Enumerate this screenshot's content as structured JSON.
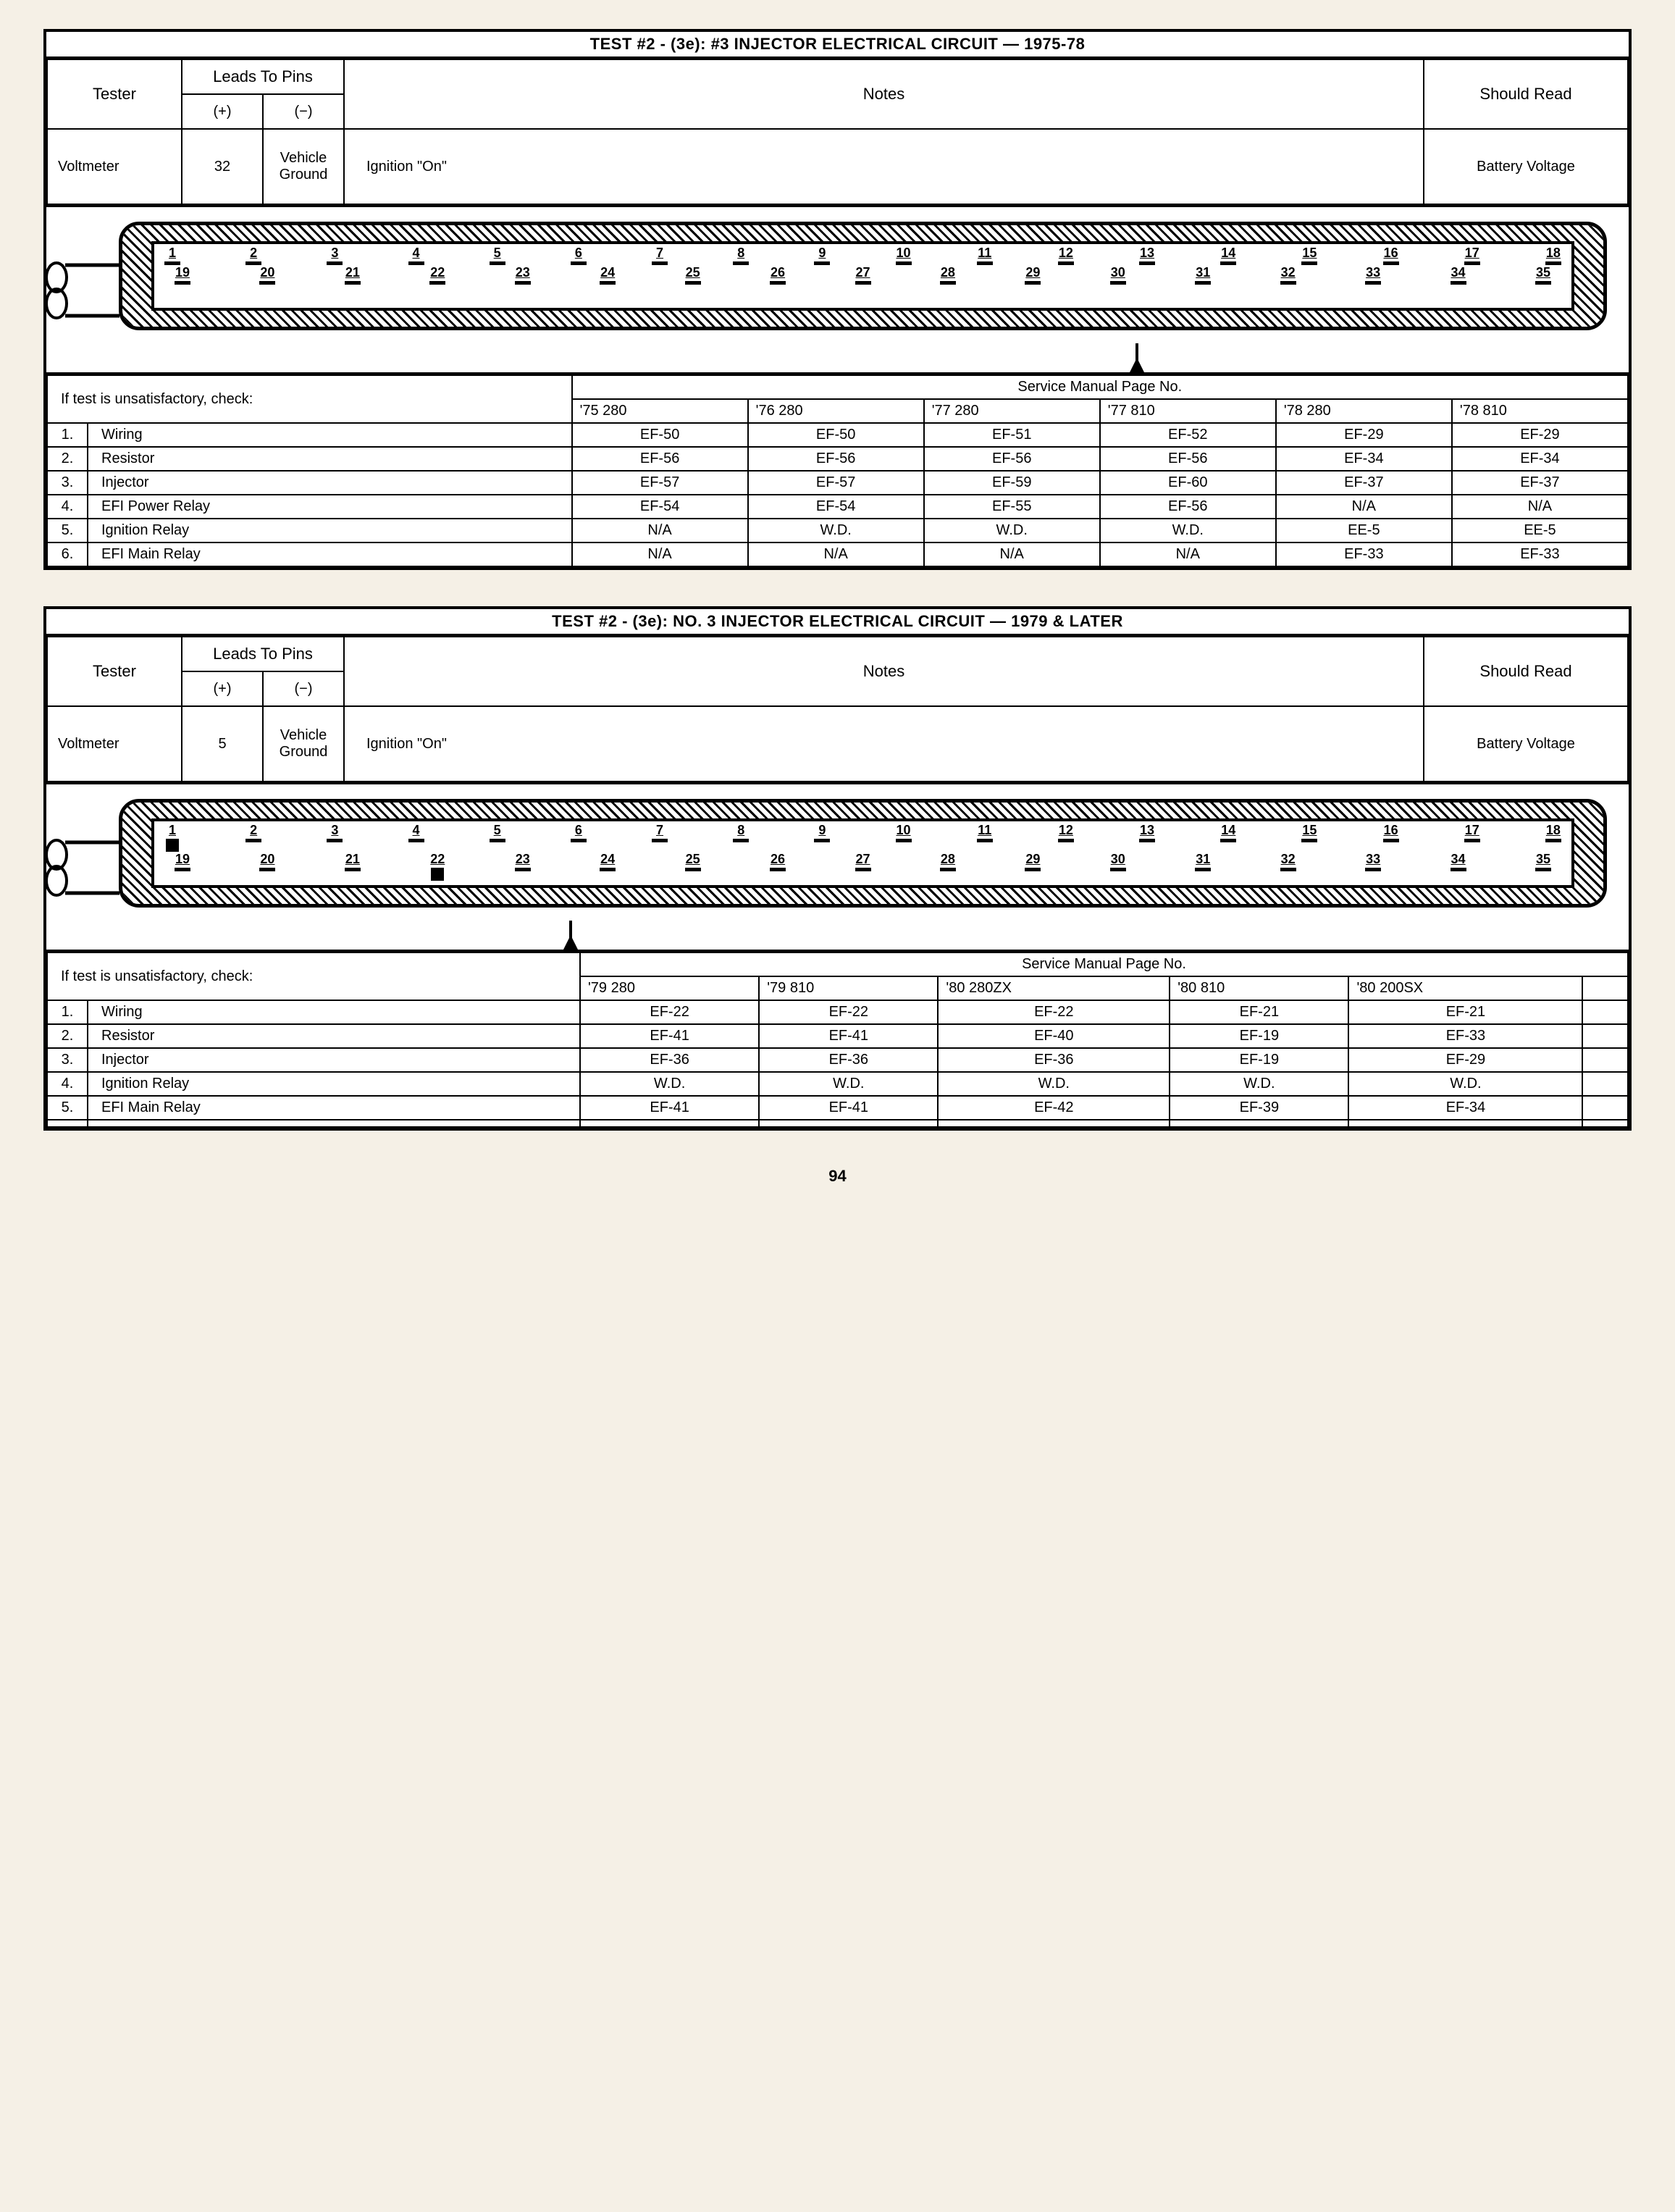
{
  "page_number": "94",
  "tests": [
    {
      "title": "TEST #2 - (3e):  #3 INJECTOR ELECTRICAL CIRCUIT — 1975-78",
      "header": {
        "tester_label": "Tester",
        "leads_label": "Leads To Pins",
        "notes_label": "Notes",
        "should_label": "Should Read",
        "plus": "(+)",
        "minus": "(−)",
        "tester_value": "Voltmeter",
        "plus_pin": "32",
        "minus_pin": "Vehicle Ground",
        "notes_value": "Ignition \"On\"",
        "should_value": "Battery Voltage"
      },
      "connector": {
        "top_pins": [
          "1",
          "2",
          "3",
          "4",
          "5",
          "6",
          "7",
          "8",
          "9",
          "10",
          "11",
          "12",
          "13",
          "14",
          "15",
          "16",
          "17",
          "18"
        ],
        "bottom_pins": [
          "19",
          "20",
          "21",
          "22",
          "23",
          "24",
          "25",
          "26",
          "27",
          "28",
          "29",
          "30",
          "31",
          "32",
          "33",
          "34",
          "35"
        ],
        "filled_top": [],
        "filled_bottom": [],
        "arrow_pin_bottom_index": 13
      },
      "service": {
        "check_label": "If test is unsatisfactory, check:",
        "page_label": "Service Manual Page No.",
        "columns": [
          "'75 280",
          "'76 280",
          "'77 280",
          "'77 810",
          "'78 280",
          "'78 810"
        ],
        "rows": [
          {
            "n": "1.",
            "item": "Wiring",
            "vals": [
              "EF-50",
              "EF-50",
              "EF-51",
              "EF-52",
              "EF-29",
              "EF-29"
            ]
          },
          {
            "n": "2.",
            "item": "Resistor",
            "vals": [
              "EF-56",
              "EF-56",
              "EF-56",
              "EF-56",
              "EF-34",
              "EF-34"
            ]
          },
          {
            "n": "3.",
            "item": "Injector",
            "vals": [
              "EF-57",
              "EF-57",
              "EF-59",
              "EF-60",
              "EF-37",
              "EF-37"
            ]
          },
          {
            "n": "4.",
            "item": "EFI Power Relay",
            "vals": [
              "EF-54",
              "EF-54",
              "EF-55",
              "EF-56",
              "N/A",
              "N/A"
            ]
          },
          {
            "n": "5.",
            "item": "Ignition Relay",
            "vals": [
              "N/A",
              "W.D.",
              "W.D.",
              "W.D.",
              "EE-5",
              "EE-5"
            ]
          },
          {
            "n": "6.",
            "item": "EFI Main Relay",
            "vals": [
              "N/A",
              "N/A",
              "N/A",
              "N/A",
              "EF-33",
              "EF-33"
            ]
          }
        ]
      }
    },
    {
      "title": "TEST #2 - (3e): NO. 3 INJECTOR ELECTRICAL CIRCUIT — 1979 & LATER",
      "header": {
        "tester_label": "Tester",
        "leads_label": "Leads To Pins",
        "notes_label": "Notes",
        "should_label": "Should Read",
        "plus": "(+)",
        "minus": "(−)",
        "tester_value": "Voltmeter",
        "plus_pin": "5",
        "minus_pin": "Vehicle Ground",
        "notes_value": "Ignition \"On\"",
        "should_value": "Battery Voltage"
      },
      "connector": {
        "top_pins": [
          "1",
          "2",
          "3",
          "4",
          "5",
          "6",
          "7",
          "8",
          "9",
          "10",
          "11",
          "12",
          "13",
          "14",
          "15",
          "16",
          "17",
          "18"
        ],
        "bottom_pins": [
          "19",
          "20",
          "21",
          "22",
          "23",
          "24",
          "25",
          "26",
          "27",
          "28",
          "29",
          "30",
          "31",
          "32",
          "33",
          "34",
          "35"
        ],
        "filled_top": [
          0
        ],
        "filled_bottom": [
          3
        ],
        "arrow_pin_top_index": 4
      },
      "service": {
        "check_label": "If test is unsatisfactory, check:",
        "page_label": "Service Manual Page No.",
        "columns": [
          "'79 280",
          "'79 810",
          "'80 280ZX",
          "'80 810",
          "'80 200SX",
          ""
        ],
        "rows": [
          {
            "n": "1.",
            "item": "Wiring",
            "vals": [
              "EF-22",
              "EF-22",
              "EF-22",
              "EF-21",
              "EF-21",
              ""
            ]
          },
          {
            "n": "2.",
            "item": "Resistor",
            "vals": [
              "EF-41",
              "EF-41",
              "EF-40",
              "EF-19",
              "EF-33",
              ""
            ]
          },
          {
            "n": "3.",
            "item": "Injector",
            "vals": [
              "EF-36",
              "EF-36",
              "EF-36",
              "EF-19",
              "EF-29",
              ""
            ]
          },
          {
            "n": "4.",
            "item": "Ignition Relay",
            "vals": [
              "W.D.",
              "W.D.",
              "W.D.",
              "W.D.",
              "W.D.",
              ""
            ]
          },
          {
            "n": "5.",
            "item": "EFI Main Relay",
            "vals": [
              "EF-41",
              "EF-41",
              "EF-42",
              "EF-39",
              "EF-34",
              ""
            ]
          },
          {
            "n": "",
            "item": "",
            "vals": [
              "",
              "",
              "",
              "",
              "",
              ""
            ]
          }
        ]
      }
    }
  ]
}
